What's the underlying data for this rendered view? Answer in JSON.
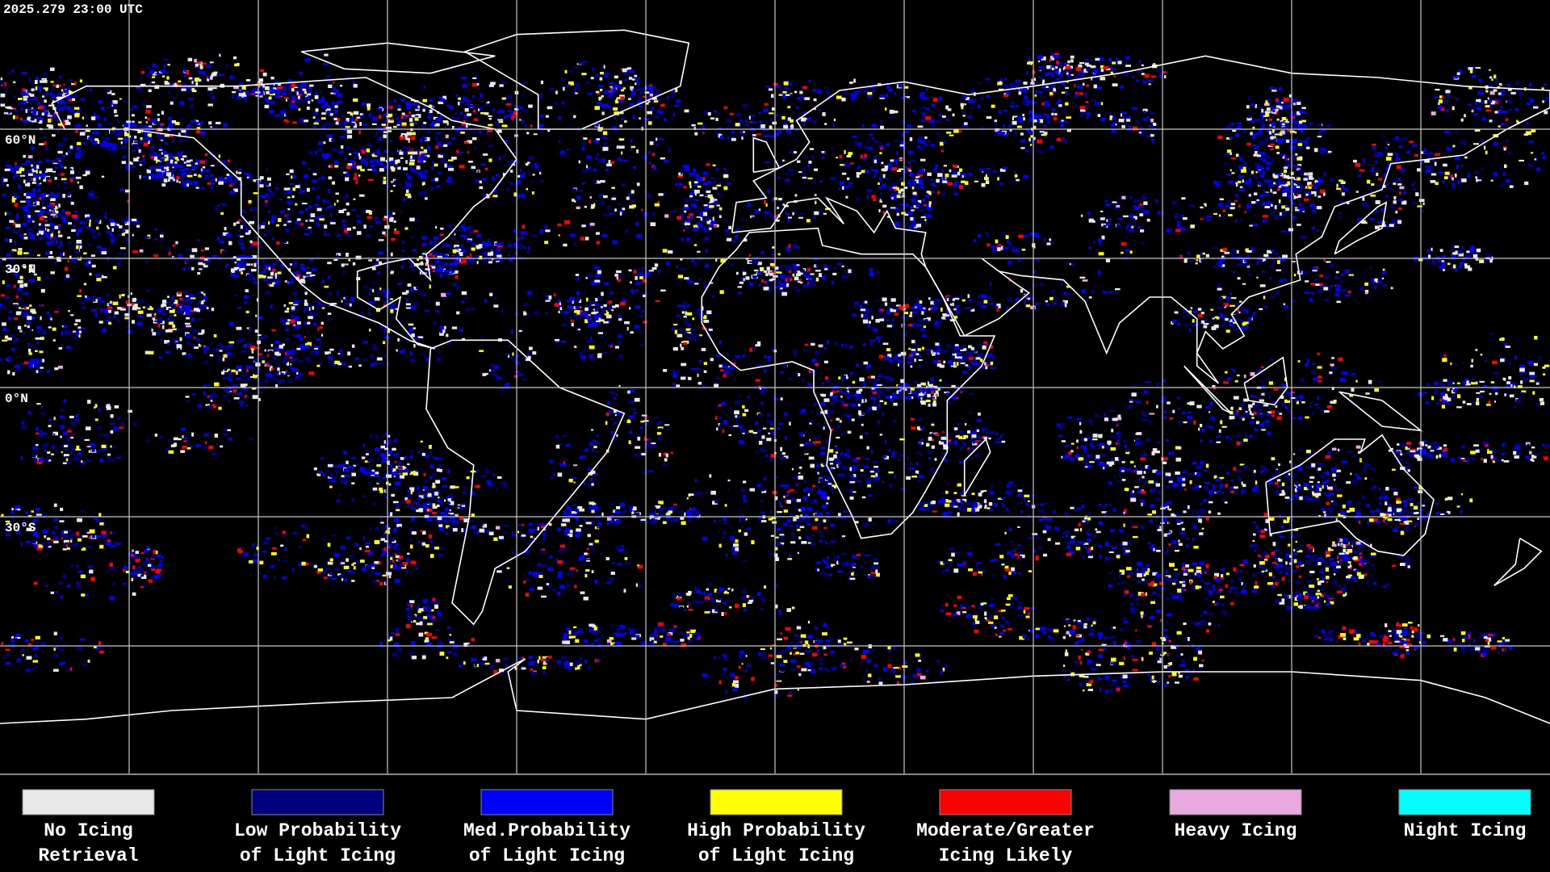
{
  "header": {
    "timestamp": "2025.279 23:00 UTC"
  },
  "map": {
    "latitude_labels": [
      "60°N",
      "30°N",
      "0°N",
      "30°S"
    ]
  },
  "legend": {
    "items": [
      {
        "label_lines": [
          "No Icing",
          "Retrieval"
        ],
        "color": "#e8e8e8"
      },
      {
        "label_lines": [
          "Low Probability",
          "of Light Icing"
        ],
        "color": "#000080"
      },
      {
        "label_lines": [
          "Med.Probability",
          "of Light Icing"
        ],
        "color": "#0000ff"
      },
      {
        "label_lines": [
          "High Probability",
          "of Light Icing"
        ],
        "color": "#ffff00"
      },
      {
        "label_lines": [
          "Moderate/Greater",
          "Icing Likely"
        ],
        "color": "#ff0000"
      },
      {
        "label_lines": [
          "Heavy Icing"
        ],
        "color": "#e8a8e0"
      },
      {
        "label_lines": [
          "Night Icing"
        ],
        "color": "#00ffff"
      }
    ]
  }
}
